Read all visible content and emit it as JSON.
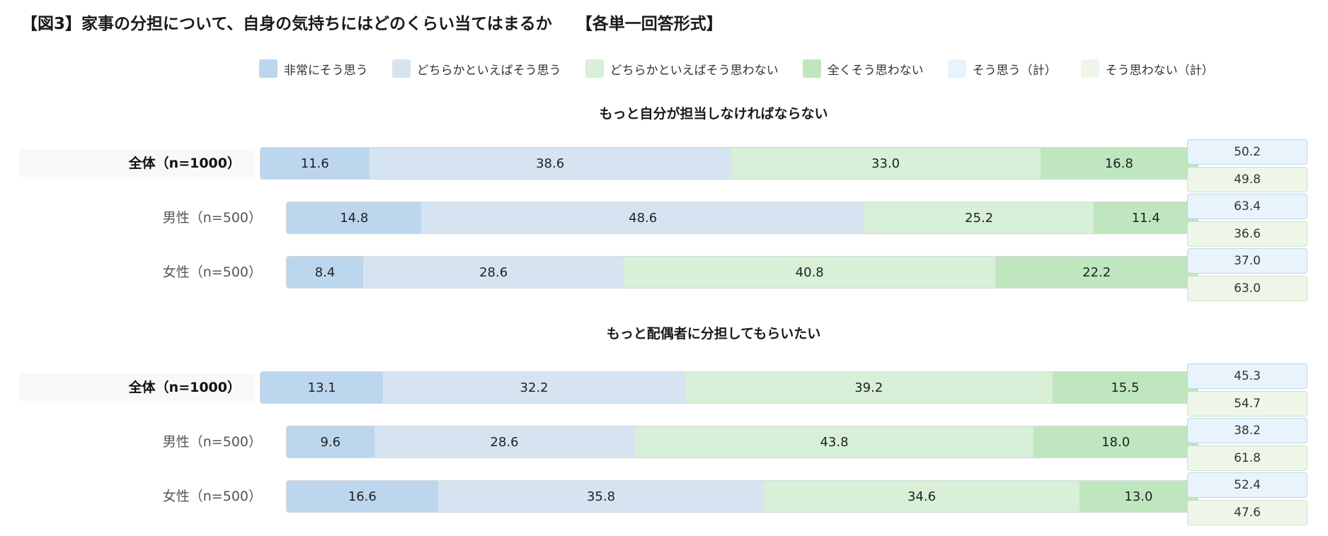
{
  "title": "【図3】家事の分担について、自身の気持ちにはどのくらい当てはまるか",
  "title_tag": "【各単一回答形式】",
  "legend": [
    {
      "label": "非常にそう思う",
      "color": "#bcd6ee"
    },
    {
      "label": "どちらかといえばそう思う",
      "color": "#d6e4f1"
    },
    {
      "label": "どちらかといえばそう思わない",
      "color": "#d8efd8"
    },
    {
      "label": "全くそう思わない",
      "color": "#bfe6bf"
    },
    {
      "label": "そう思う（計）",
      "color": "#e8f3fc"
    },
    {
      "label": "そう思わない（計）",
      "color": "#eef6ea"
    }
  ],
  "colors": {
    "agree_total_bg": "#e8f3fc",
    "agree_total_border": "#b9d6ec",
    "disagree_total_bg": "#eef6ea",
    "disagree_total_border": "#c8e4c0"
  },
  "chart_data": [
    {
      "type": "bar",
      "orientation": "horizontal-stacked",
      "title": "もっと自分が担当しなければならない",
      "categories": [
        "全体（n=1000）",
        "男性（n=500）",
        "女性（n=500）"
      ],
      "series": [
        {
          "name": "非常にそう思う",
          "values": [
            11.6,
            14.8,
            8.4
          ]
        },
        {
          "name": "どちらかといえばそう思う",
          "values": [
            38.6,
            48.6,
            28.6
          ]
        },
        {
          "name": "どちらかといえばそう思わない",
          "values": [
            33.0,
            25.2,
            40.8
          ]
        },
        {
          "name": "全くそう思わない",
          "values": [
            16.8,
            11.4,
            22.2
          ]
        }
      ],
      "totals": {
        "そう思う（計）": [
          50.2,
          63.4,
          37.0
        ],
        "そう思わない（計）": [
          49.8,
          36.6,
          63.0
        ]
      },
      "xlim": [
        0,
        100
      ]
    },
    {
      "type": "bar",
      "orientation": "horizontal-stacked",
      "title": "もっと配偶者に分担してもらいたい",
      "categories": [
        "全体（n=1000）",
        "男性（n=500）",
        "女性（n=500）"
      ],
      "series": [
        {
          "name": "非常にそう思う",
          "values": [
            13.1,
            9.6,
            16.6
          ]
        },
        {
          "name": "どちらかといえばそう思う",
          "values": [
            32.2,
            28.6,
            35.8
          ]
        },
        {
          "name": "どちらかといえばそう思わない",
          "values": [
            39.2,
            43.8,
            34.6
          ]
        },
        {
          "name": "全くそう思わない",
          "values": [
            15.5,
            18.0,
            13.0
          ]
        }
      ],
      "totals": {
        "そう思う（計）": [
          45.3,
          38.2,
          52.4
        ],
        "そう思わない（計）": [
          54.7,
          61.8,
          47.6
        ]
      },
      "xlim": [
        0,
        100
      ]
    }
  ]
}
